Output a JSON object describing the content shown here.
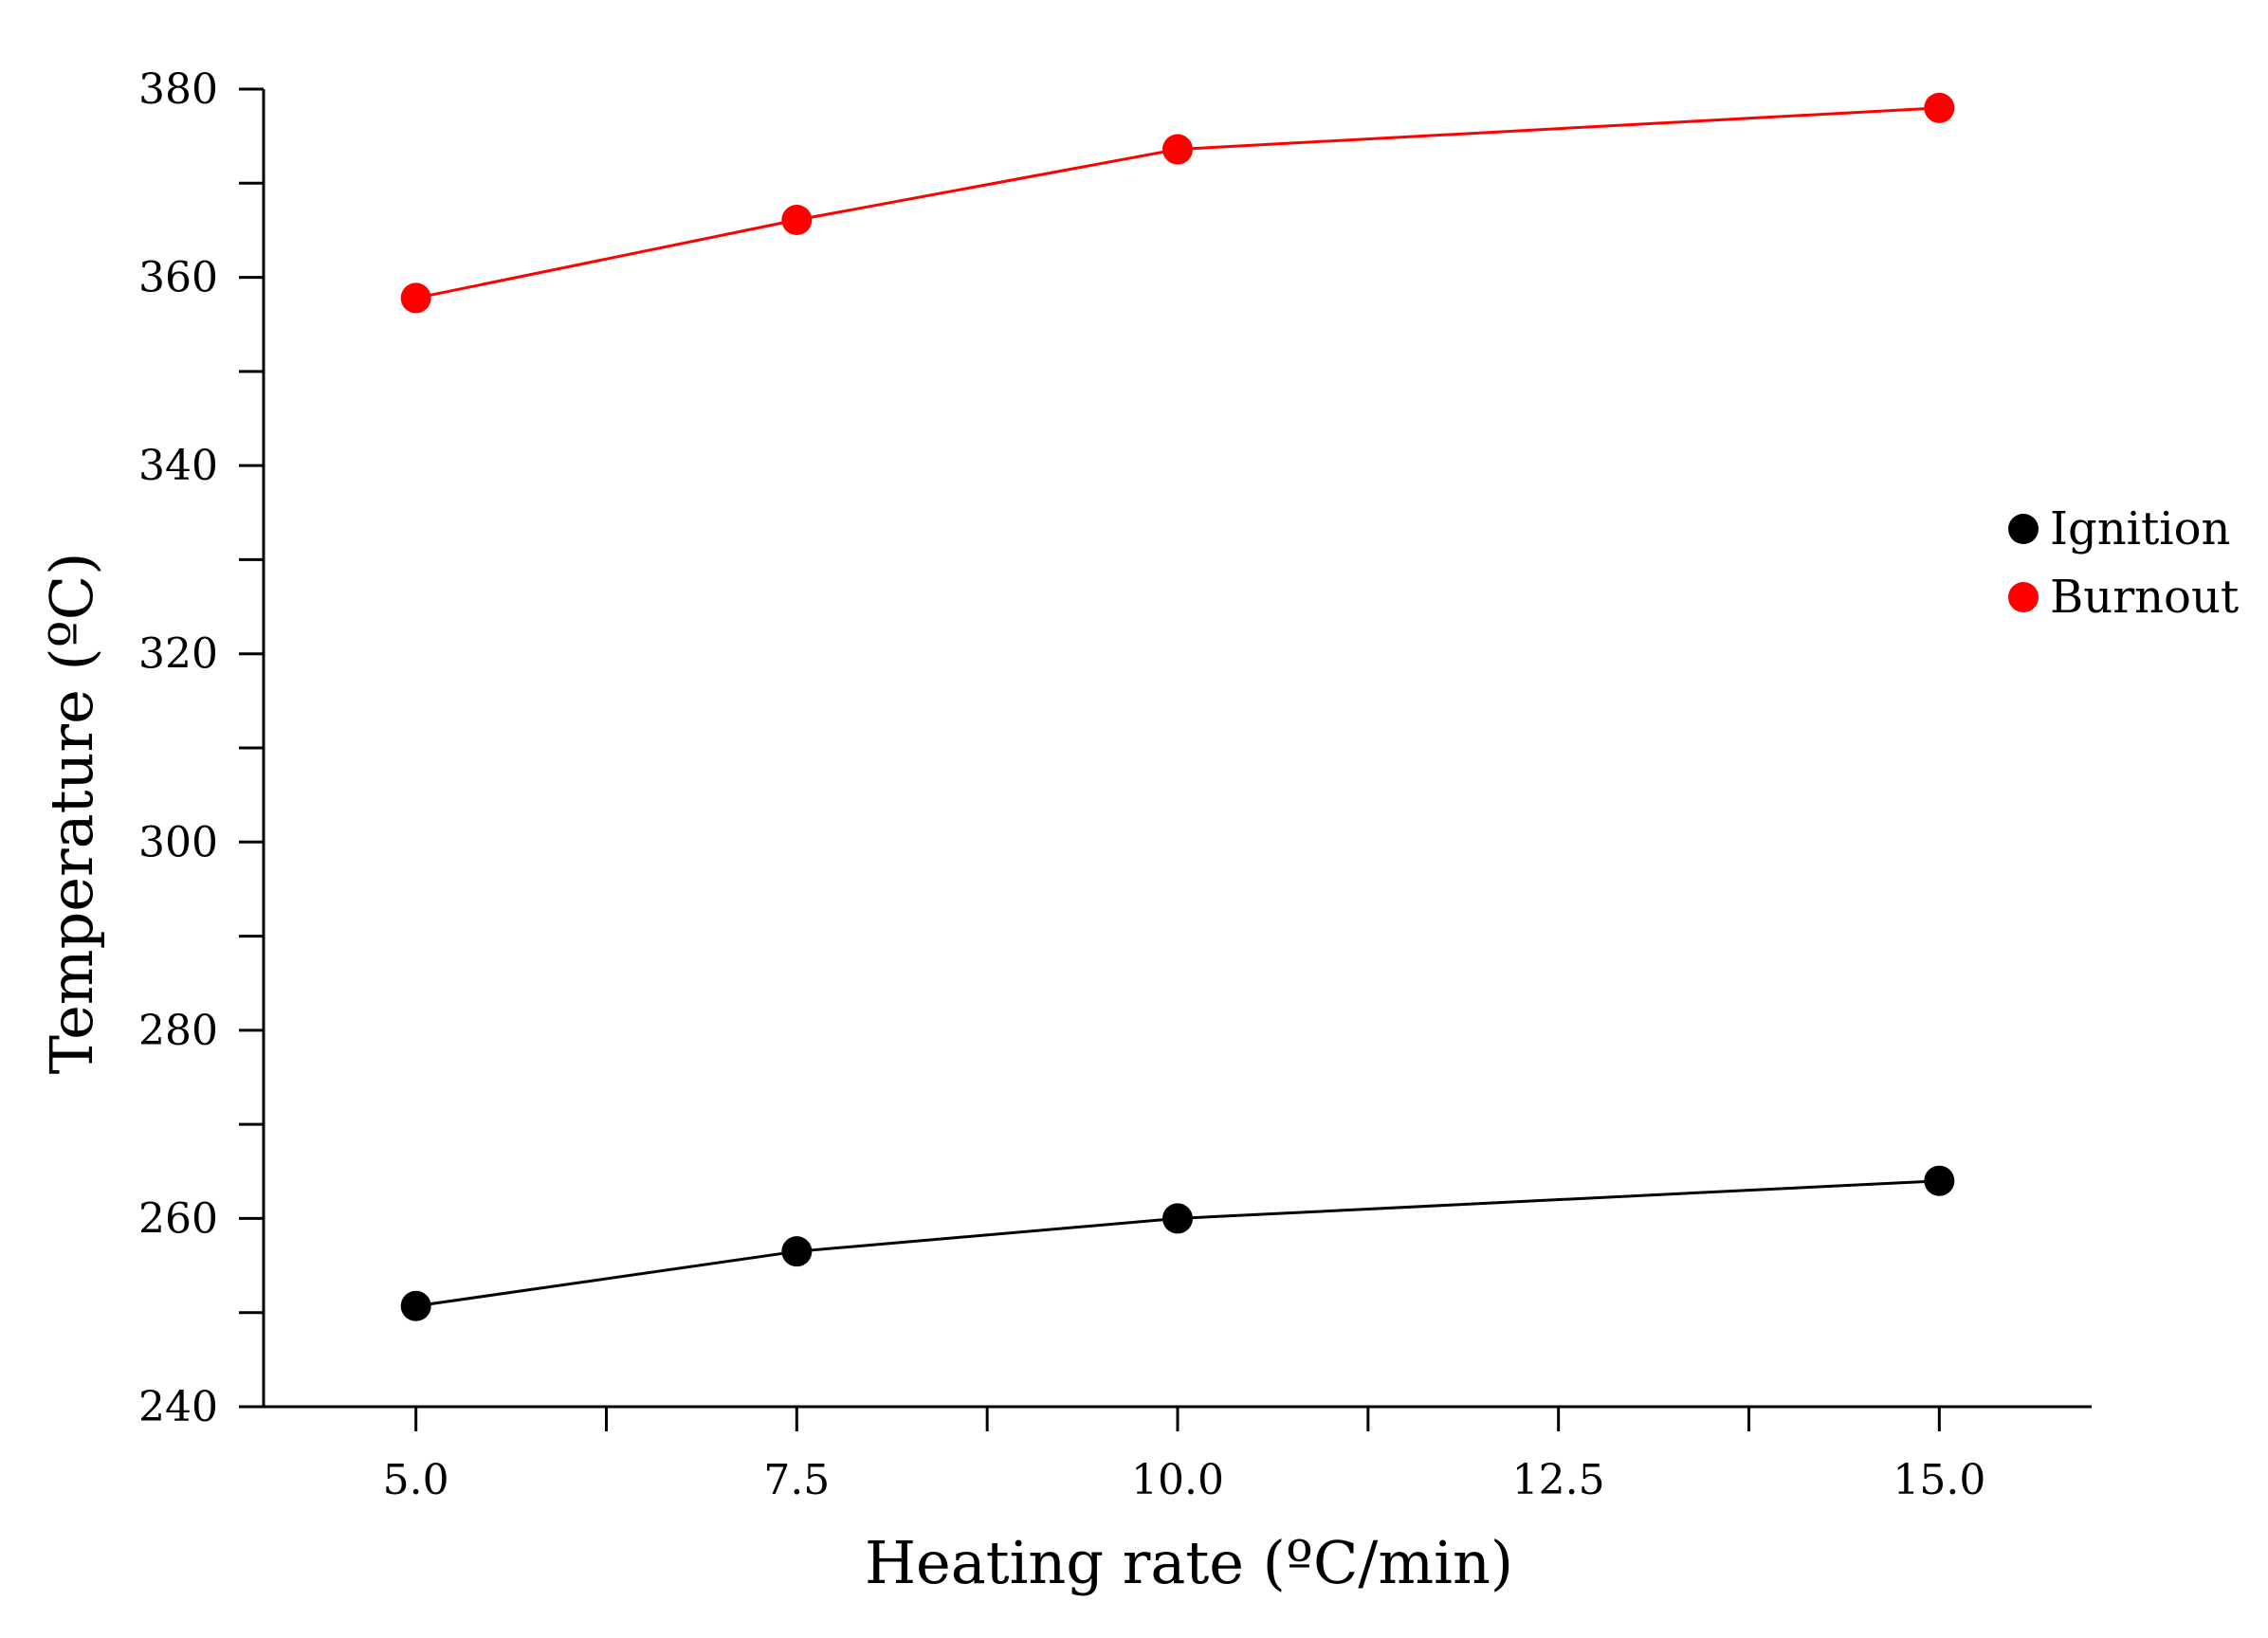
{
  "chart_data": {
    "type": "line",
    "title": "",
    "xlabel": "Heating rate (ºC/min)",
    "ylabel": "Temperature (ºC)",
    "xlim": [
      4.0,
      16.0
    ],
    "ylim": [
      240,
      380
    ],
    "x_major_ticks": [
      5.0,
      7.5,
      10.0,
      12.5,
      15.0
    ],
    "x_tick_labels": [
      "5.0",
      "7.5",
      "10.0",
      "12.5",
      "15.0"
    ],
    "x_minor_ticks": [
      6.25,
      8.75,
      11.25,
      13.75
    ],
    "y_major_ticks": [
      240,
      260,
      280,
      300,
      320,
      340,
      360,
      380
    ],
    "y_tick_labels": [
      "240",
      "260",
      "280",
      "300",
      "320",
      "340",
      "360",
      "380"
    ],
    "y_minor_ticks": [
      250,
      270,
      290,
      310,
      330,
      350,
      370
    ],
    "grid": false,
    "legend_position": "right",
    "x": [
      5.0,
      7.5,
      10.0,
      15.0
    ],
    "series": [
      {
        "name": "Ignition",
        "color": "#000000",
        "values": [
          250.7,
          256.5,
          260.0,
          264.0
        ]
      },
      {
        "name": "Burnout",
        "color": "#ff0000",
        "values": [
          357.8,
          366.1,
          373.6,
          378.0
        ]
      }
    ]
  }
}
